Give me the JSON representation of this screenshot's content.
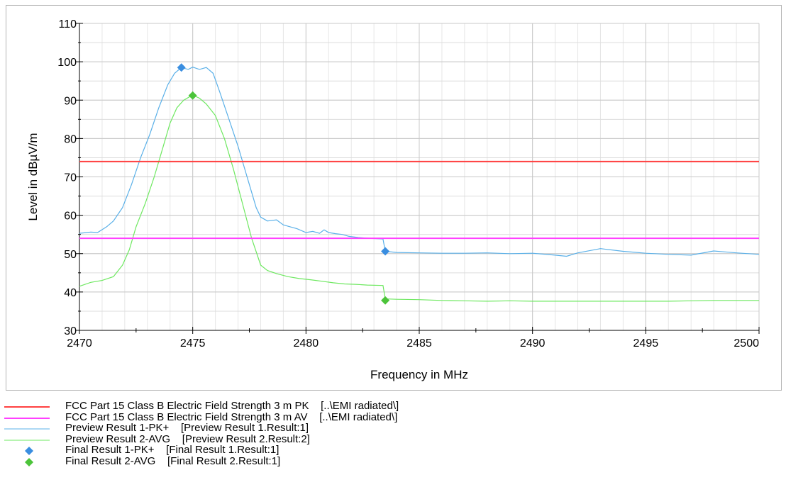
{
  "chart_data": {
    "type": "line",
    "xlabel": "Frequency in MHz",
    "ylabel": "Level in dBµV/m",
    "xlim": [
      2470,
      2500
    ],
    "ylim": [
      30,
      110
    ],
    "x_ticks": [
      2470,
      2475,
      2480,
      2485,
      2490,
      2495,
      2500
    ],
    "y_ticks": [
      30,
      40,
      50,
      60,
      70,
      80,
      90,
      100,
      110
    ],
    "x_minor_step": 1,
    "y_minor_step": 5,
    "grid": true,
    "limit_lines": [
      {
        "name": "FCC Part 15 Class B Electric Field Strength 3 m PK",
        "source": "[..\\EMI radiated\\]",
        "value": 74,
        "color": "#ff4040"
      },
      {
        "name": "FCC Part 15 Class B Electric Field Strength 3 m AV",
        "source": "[..\\EMI radiated\\]",
        "value": 54,
        "color": "#ff40ff"
      }
    ],
    "series": [
      {
        "name": "Preview Result 1-PK+",
        "source": "[Preview Result 1.Result:1]",
        "color": "#5ab0e8",
        "x": [
          2470,
          2470.5,
          2470.8,
          2471.2,
          2471.5,
          2471.9,
          2472.3,
          2472.7,
          2473.1,
          2473.5,
          2473.9,
          2474.2,
          2474.5,
          2474.8,
          2475.0,
          2475.3,
          2475.6,
          2475.9,
          2476.2,
          2476.6,
          2477.0,
          2477.4,
          2477.8,
          2478.0,
          2478.3,
          2478.7,
          2479.0,
          2479.3,
          2479.6,
          2480.0,
          2480.3,
          2480.6,
          2480.8,
          2481.0,
          2481.3,
          2481.6,
          2481.9,
          2482.3,
          2482.8,
          2483.4,
          2483.5,
          2484.0,
          2485.0,
          2486.0,
          2487.0,
          2488.0,
          2489.0,
          2490.0,
          2491.0,
          2491.5,
          2492.0,
          2493.0,
          2494.0,
          2495.0,
          2496.0,
          2497.0,
          2498.0,
          2499.0,
          2500.0
        ],
        "values": [
          55.3,
          55.6,
          55.5,
          57.0,
          58.5,
          62.0,
          68.0,
          75.0,
          81.0,
          88.0,
          94.0,
          97.0,
          98.5,
          98.0,
          98.6,
          98.0,
          98.5,
          97.0,
          92.0,
          85.0,
          78.0,
          70.0,
          62.0,
          59.5,
          58.5,
          58.8,
          57.5,
          57.0,
          56.5,
          55.5,
          55.8,
          55.3,
          56.2,
          55.5,
          55.2,
          55.0,
          54.5,
          54.2,
          54.0,
          53.8,
          50.6,
          50.3,
          50.2,
          50.1,
          50.1,
          50.2,
          50.0,
          50.1,
          49.6,
          49.3,
          50.2,
          51.3,
          50.6,
          50.1,
          49.8,
          49.6,
          50.7,
          50.2,
          49.8
        ]
      },
      {
        "name": "Preview Result 2-AVG",
        "source": "[Preview Result 2.Result:2]",
        "color": "#6ee860",
        "x": [
          2470,
          2470.5,
          2471.0,
          2471.5,
          2471.9,
          2472.2,
          2472.5,
          2472.9,
          2473.3,
          2473.7,
          2474.0,
          2474.3,
          2474.6,
          2474.9,
          2475.0,
          2475.3,
          2475.6,
          2476.0,
          2476.4,
          2476.8,
          2477.2,
          2477.6,
          2478.0,
          2478.3,
          2478.7,
          2479.2,
          2479.7,
          2480.2,
          2480.7,
          2481.2,
          2481.7,
          2482.2,
          2482.7,
          2483.4,
          2483.5,
          2484.0,
          2485.0,
          2486.0,
          2487.0,
          2488.0,
          2489.0,
          2490.0,
          2492.0,
          2494.0,
          2496.0,
          2497.0,
          2498.0,
          2500.0
        ],
        "values": [
          41.5,
          42.5,
          43.0,
          44.0,
          47.0,
          51.0,
          57.0,
          63.0,
          70.0,
          78.0,
          84.0,
          88.0,
          90.0,
          91.0,
          91.3,
          90.5,
          89.0,
          86.0,
          80.0,
          72.0,
          63.0,
          54.0,
          47.0,
          45.6,
          44.8,
          44.0,
          43.5,
          43.2,
          42.8,
          42.4,
          42.1,
          42.0,
          41.8,
          41.7,
          38.2,
          38.1,
          38.0,
          37.8,
          37.7,
          37.6,
          37.7,
          37.6,
          37.6,
          37.6,
          37.6,
          37.7,
          37.8,
          37.8
        ]
      }
    ],
    "final_results": [
      {
        "name": "Final Result 1-PK+",
        "source": "[Final Result 1.Result:1]",
        "color": "#3a8ee0",
        "points": [
          {
            "x": 2474.5,
            "y": 98.5
          },
          {
            "x": 2483.5,
            "y": 50.6
          }
        ]
      },
      {
        "name": "Final Result 2-AVG",
        "source": "[Final Result 2.Result:1]",
        "color": "#4cc43a",
        "points": [
          {
            "x": 2475.0,
            "y": 91.2
          },
          {
            "x": 2483.5,
            "y": 37.8
          }
        ]
      }
    ]
  }
}
